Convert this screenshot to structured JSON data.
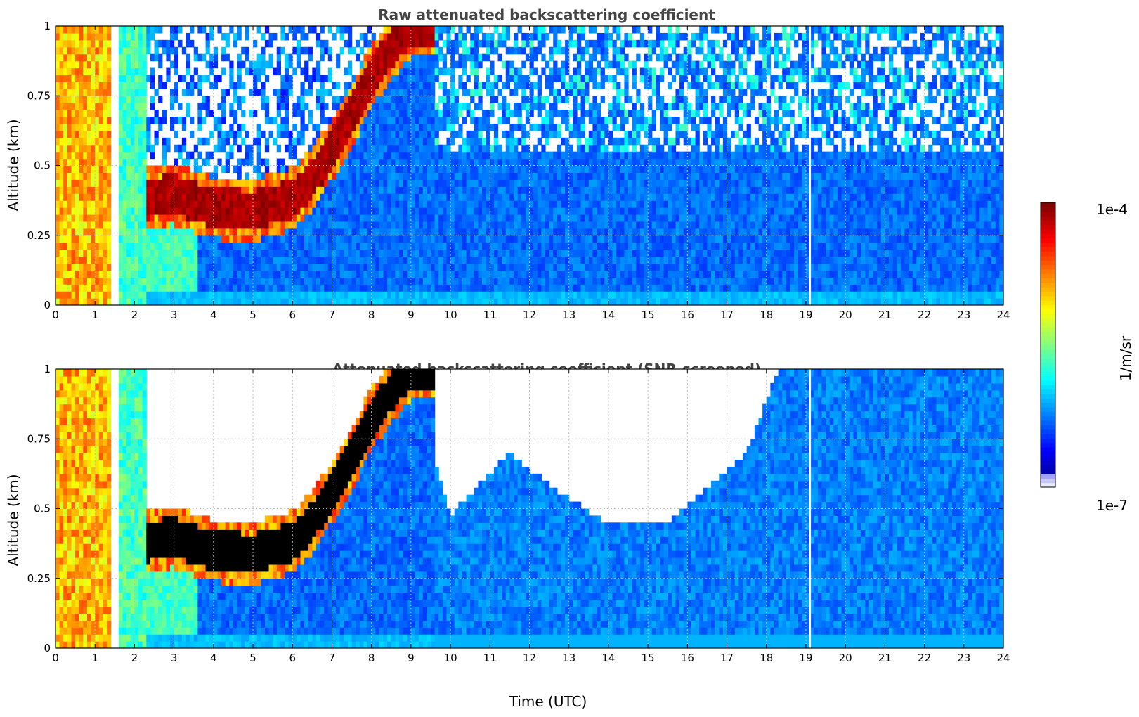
{
  "chart_data": [
    {
      "type": "heatmap",
      "title": "Raw attenuated backscattering coefficient",
      "xlabel": "",
      "ylabel": "Altitude (km)",
      "xlim": [
        0,
        24
      ],
      "ylim": [
        0,
        1
      ],
      "x_ticks": [
        "0",
        "1",
        "2",
        "3",
        "4",
        "5",
        "6",
        "7",
        "8",
        "9",
        "10",
        "11",
        "12",
        "13",
        "14",
        "15",
        "16",
        "17",
        "18",
        "19",
        "20",
        "21",
        "22",
        "23",
        "24"
      ],
      "y_ticks": [
        "0",
        "0.25",
        "0.5",
        "0.75",
        "1"
      ],
      "grid": true,
      "colorscale": "jet",
      "color_range": [
        "1e-7",
        "1e-4"
      ],
      "features": {
        "surface_layer_altitude_km": 0.05,
        "aerosol_layer": [
          {
            "time": 2.3,
            "altitude": 0.38
          },
          {
            "time": 3.0,
            "altitude": 0.4
          },
          {
            "time": 4.0,
            "altitude": 0.35
          },
          {
            "time": 5.0,
            "altitude": 0.34
          },
          {
            "time": 6.0,
            "altitude": 0.38
          },
          {
            "time": 6.5,
            "altitude": 0.45
          },
          {
            "time": 7.0,
            "altitude": 0.56
          },
          {
            "time": 7.5,
            "altitude": 0.68
          },
          {
            "time": 8.0,
            "altitude": 0.82
          },
          {
            "time": 8.5,
            "altitude": 0.92
          },
          {
            "time": 9.0,
            "altitude": 1.0
          }
        ],
        "data_gap_times": [
          1.45,
          19.1
        ],
        "low_snr_background": "above aerosol layer"
      }
    },
    {
      "type": "heatmap",
      "title": "Attenuated backscattering coefficient (SNR-screened)",
      "xlabel": "Time (UTC)",
      "ylabel": "Altitude (km)",
      "xlim": [
        0,
        24
      ],
      "ylim": [
        0,
        1
      ],
      "x_ticks": [
        "0",
        "1",
        "2",
        "3",
        "4",
        "5",
        "6",
        "7",
        "8",
        "9",
        "10",
        "11",
        "12",
        "13",
        "14",
        "15",
        "16",
        "17",
        "18",
        "19",
        "20",
        "21",
        "22",
        "23",
        "24"
      ],
      "y_ticks": [
        "0",
        "0.25",
        "0.5",
        "0.75",
        "1"
      ],
      "grid": true,
      "colorscale": "jet",
      "color_range": [
        "1e-7",
        "1e-4"
      ],
      "features": {
        "screened_boundary": [
          {
            "time": 2.3,
            "altitude": 0.55
          },
          {
            "time": 4.0,
            "altitude": 0.5
          },
          {
            "time": 5.0,
            "altitude": 0.47
          },
          {
            "time": 6.0,
            "altitude": 0.5
          },
          {
            "time": 7.0,
            "altitude": 0.62
          },
          {
            "time": 8.0,
            "altitude": 0.85
          },
          {
            "time": 9.0,
            "altitude": 1.0
          },
          {
            "time": 10.0,
            "altitude": 0.48
          },
          {
            "time": 11.5,
            "altitude": 0.7
          },
          {
            "time": 12.8,
            "altitude": 0.55
          },
          {
            "time": 14.0,
            "altitude": 0.45
          },
          {
            "time": 15.5,
            "altitude": 0.45
          },
          {
            "time": 16.5,
            "altitude": 0.58
          },
          {
            "time": 17.5,
            "altitude": 0.7
          },
          {
            "time": 18.3,
            "altitude": 1.0
          }
        ]
      }
    }
  ],
  "colorbar": {
    "max_label": "1e-4",
    "min_label": "1e-7",
    "label": "1/m/sr"
  }
}
